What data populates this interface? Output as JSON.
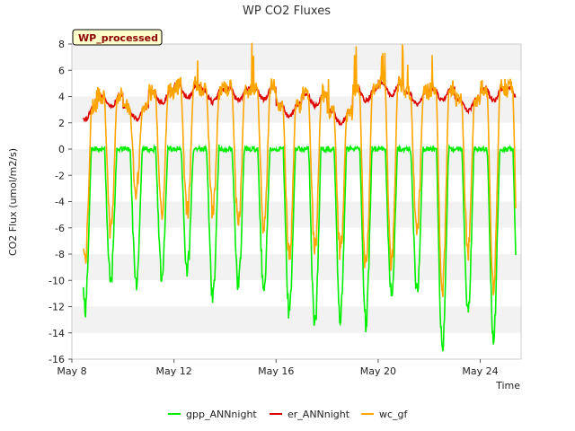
{
  "chart_data": {
    "type": "line",
    "title": "WP CO2 Fluxes",
    "xlabel": "Time",
    "ylabel": "CO2 Flux (umol/m2/s)",
    "badge": "WP_processed",
    "ylim": [
      -16,
      8
    ],
    "xlim_days": [
      8,
      25.6
    ],
    "x_ticks": [
      {
        "label": "May 8",
        "day": 8
      },
      {
        "label": "May 12",
        "day": 12
      },
      {
        "label": "May 16",
        "day": 16
      },
      {
        "label": "May 20",
        "day": 20
      },
      {
        "label": "May 24",
        "day": 24
      }
    ],
    "y_ticks": [
      8,
      6,
      4,
      2,
      0,
      -2,
      -4,
      -6,
      -8,
      -10,
      -12,
      -14,
      -16
    ],
    "legend_position": "bottom",
    "grid": true,
    "series": [
      {
        "name": "gpp_ANNnight",
        "color": "#00ee00",
        "days": [
          8.5,
          9.5,
          10.5,
          11.5,
          12.5,
          13.5,
          14.5,
          15.5,
          16.5,
          17.5,
          18.5,
          19.5,
          20.5,
          21.5,
          22.5,
          23.5,
          24.5
        ],
        "peak_values": [
          -12.2,
          -10.2,
          -10.2,
          -9.5,
          -9.2,
          -11.2,
          -10.2,
          -10.5,
          -12.5,
          -13.5,
          -12.8,
          -13.2,
          -11.2,
          -10.8,
          -15.2,
          -12.2,
          -14.2
        ]
      },
      {
        "name": "er_ANNnight",
        "color": "#dd0000",
        "days": [
          8.5,
          9.5,
          10.5,
          11.5,
          12.5,
          13.5,
          14.5,
          15.5,
          16.5,
          17.5,
          18.5,
          19.5,
          20.5,
          21.5,
          22.5,
          23.5,
          24.5
        ],
        "night_values": [
          3.2,
          4.1,
          3.2,
          4.4,
          4.8,
          4.5,
          4.6,
          4.7,
          3.4,
          4.2,
          2.9,
          4.6,
          5.0,
          4.3,
          4.6,
          3.8,
          4.6
        ]
      },
      {
        "name": "wc_gf",
        "color": "#ffa500",
        "days": [
          8.5,
          9.5,
          10.5,
          11.5,
          12.5,
          13.5,
          14.5,
          15.5,
          16.5,
          17.5,
          18.5,
          19.5,
          20.5,
          21.5,
          22.5,
          23.5,
          24.5
        ],
        "peak_values": [
          -8.5,
          -6.3,
          -3.0,
          -4.8,
          -4.8,
          -4.8,
          -5.8,
          -5.9,
          -8.2,
          -7.5,
          -7.8,
          -9.2,
          -8.8,
          -6.2,
          -10.5,
          -7.8,
          -10.5
        ]
      }
    ]
  }
}
